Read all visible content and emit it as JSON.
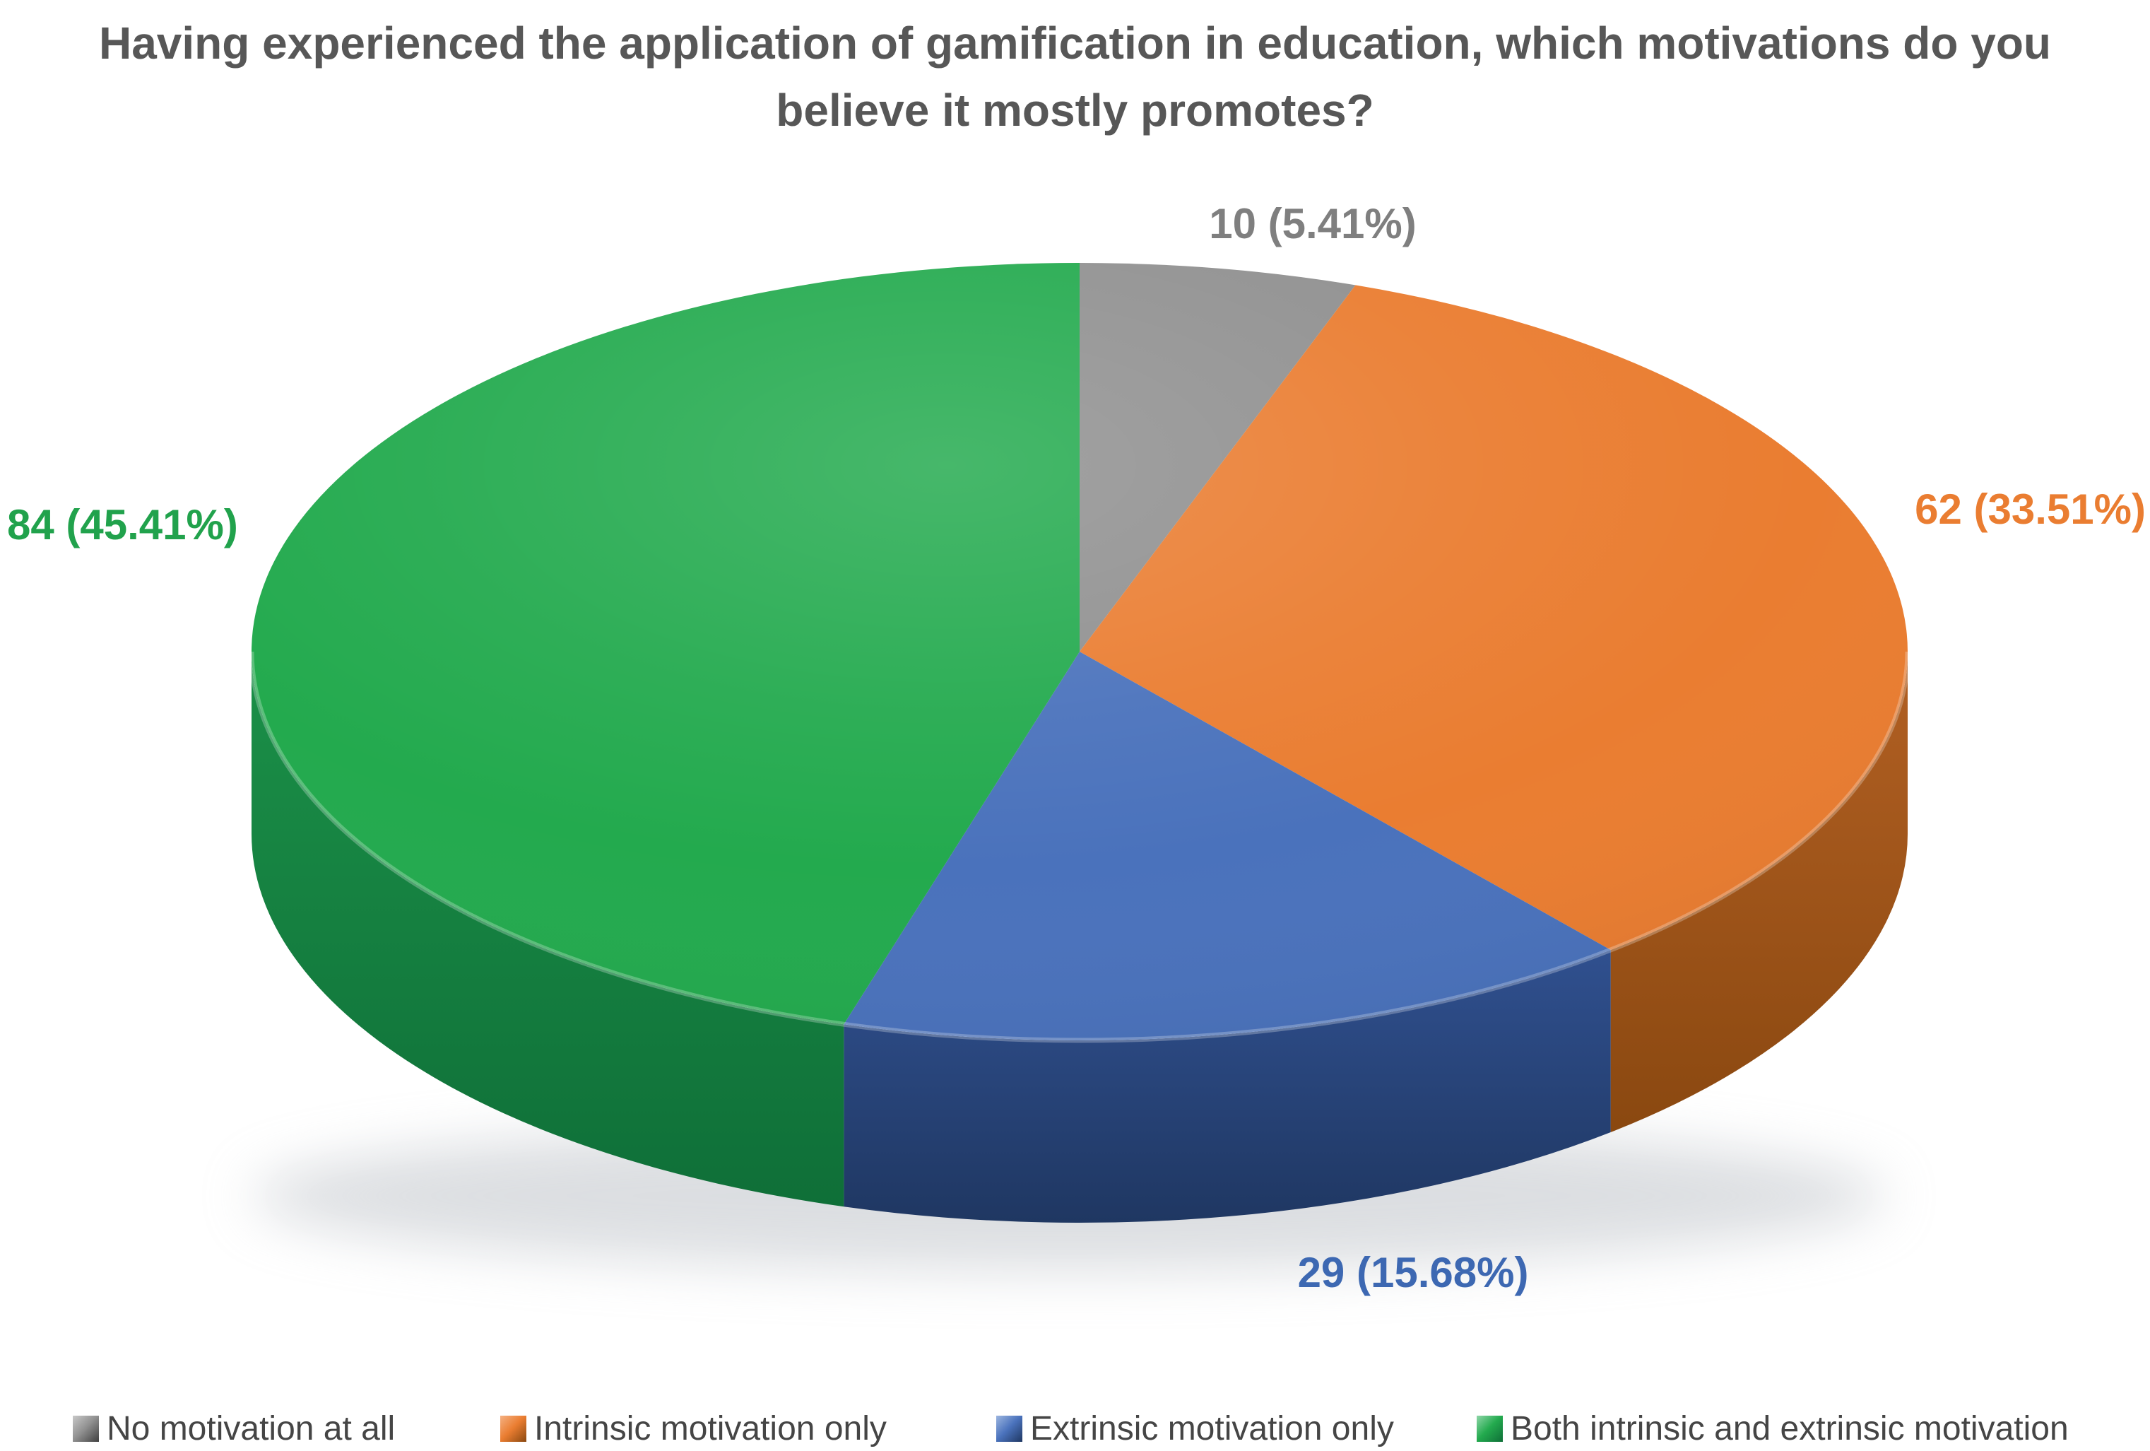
{
  "background_color": "#ffffff",
  "title": {
    "full": "Having experienced the application of gamification in education, which motivations do you believe it mostly promotes?",
    "lines": [
      "Having experienced the application of gamification in education, which motivations do you",
      "believe it mostly promotes?"
    ],
    "color": "#575757"
  },
  "chart_data": {
    "type": "pie",
    "style": "3d-pie",
    "title": "Having experienced the application of gamification in education, which motivations do you believe it mostly promotes?",
    "start_angle_deg": 0,
    "direction": "clockwise",
    "legend_position": "bottom",
    "label_format": "value (percent%)",
    "total": 185,
    "series": [
      {
        "label": "No motivation at all",
        "value": 10,
        "percent": 5.41,
        "color": "#909090",
        "wall_light": "#9e9e9e",
        "wall_dark": "#6f6f6f",
        "key_light": "#c9c9c9",
        "key_dark": "#3f3f3f"
      },
      {
        "label": "Intrinsic motivation only",
        "value": 62,
        "percent": 33.51,
        "color": "#EA7D31",
        "wall_light": "#b26023",
        "wall_dark": "#8a4810",
        "key_light": "#f5b183",
        "key_dark": "#8a4810"
      },
      {
        "label": "Extrinsic motivation only",
        "value": 29,
        "percent": 15.68,
        "color": "#4A72BC",
        "wall_light": "#30508f",
        "wall_dark": "#1f3762",
        "key_light": "#9db6e0",
        "key_dark": "#1f3762"
      },
      {
        "label": "Both intrinsic and extrinsic motivation",
        "value": 84,
        "percent": 45.41,
        "color": "#23AA4E",
        "wall_light": "#1b9048",
        "wall_dark": "#0f6f38",
        "key_light": "#8fd6a8",
        "key_dark": "#0f6f38"
      }
    ],
    "data_labels": [
      {
        "text": "10 (5.41%)",
        "color": "#7f7f7f"
      },
      {
        "text": "62 (33.51%)",
        "color": "#ea7d31"
      },
      {
        "text": "29 (15.68%)",
        "color": "#3d68b2"
      },
      {
        "text": "84 (45.41%)",
        "color": "#21a24c"
      }
    ]
  },
  "legend": {
    "items": [
      {
        "label": "No motivation at all"
      },
      {
        "label": "Intrinsic motivation only"
      },
      {
        "label": "Extrinsic motivation only"
      },
      {
        "label": "Both intrinsic and extrinsic motivation"
      }
    ]
  }
}
